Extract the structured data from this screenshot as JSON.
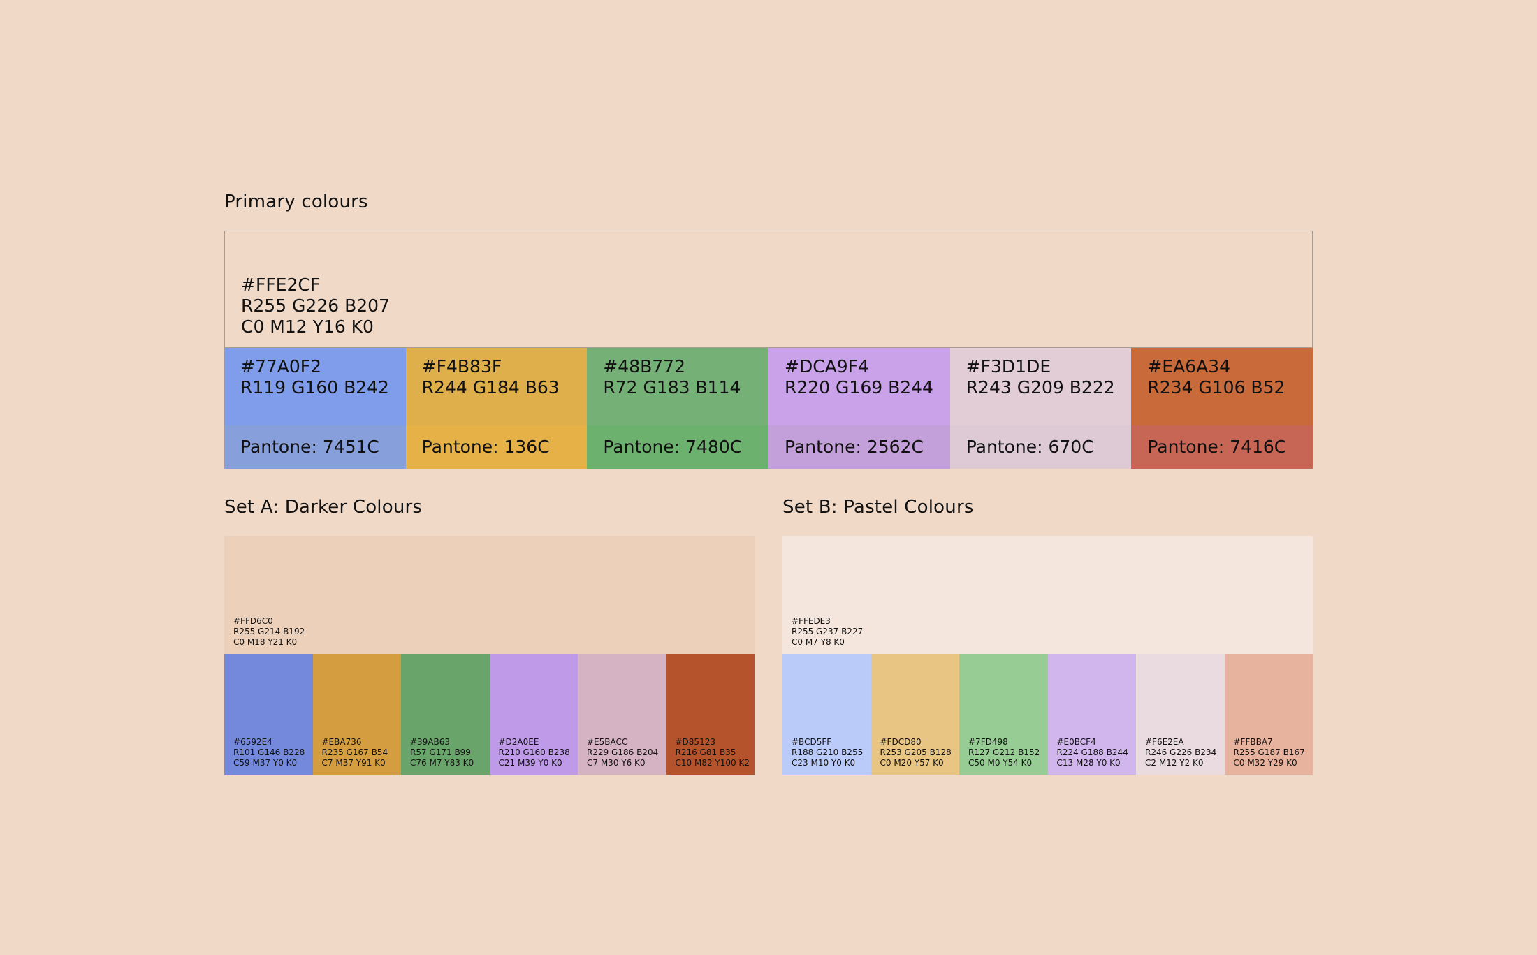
{
  "primary": {
    "title": "Primary colours",
    "main": {
      "hex": "#FFE2CF",
      "rgb": "R255 G226 B207",
      "cmyk": "C0 M12 Y16 K0",
      "color": "#F1D9C7"
    },
    "swatches": [
      {
        "hex": "#77A0F2",
        "rgb": "R119 G160 B242",
        "pantone": "Pantone: 7451C",
        "color": "#7F9DEB",
        "pantone_color": "#879FDB"
      },
      {
        "hex": "#F4B83F",
        "rgb": "R244 G184 B63",
        "pantone": "Pantone: 136C",
        "color": "#DFAF4C",
        "pantone_color": "#E6B146"
      },
      {
        "hex": "#48B772",
        "rgb": "R72 G183 B114",
        "pantone": "Pantone: 7480C",
        "color": "#75B077",
        "pantone_color": "#6CB26E"
      },
      {
        "hex": "#DCA9F4",
        "rgb": "R220 G169 B244",
        "pantone": "Pantone: 2562C",
        "color": "#C9A2EA",
        "pantone_color": "#C4A0DA"
      },
      {
        "hex": "#F3D1DE",
        "rgb": "R243 G209 B222",
        "pantone": "Pantone: 670C",
        "color": "#E2CCD6",
        "pantone_color": "#DECAD5"
      },
      {
        "hex": "#EA6A34",
        "rgb": "R234 G106 B52",
        "pantone": "Pantone: 7416C",
        "color": "#C96A3A",
        "pantone_color": "#C86655"
      }
    ]
  },
  "set_a": {
    "title": "Set A: Darker Colours",
    "main": {
      "hex": "#FFD6C0",
      "rgb": "R255 G214 B192",
      "cmyk": "C0 M18 Y21 K0",
      "color": "#EDD0BA"
    },
    "swatches": [
      {
        "hex": "#6592E4",
        "rgb": "R101 G146 B228",
        "cmyk": "C59 M37 Y0 K0",
        "color": "#7489DC"
      },
      {
        "hex": "#EBA736",
        "rgb": "R235 G167 B54",
        "cmyk": "C7 M37 Y91 K0",
        "color": "#D39D40"
      },
      {
        "hex": "#39AB63",
        "rgb": "R57 G171 B99",
        "cmyk": "C76 M7 Y83 K0",
        "color": "#69A46A"
      },
      {
        "hex": "#D2A0EE",
        "rgb": "R210 G160 B238",
        "cmyk": "C21 M39 Y0 K0",
        "color": "#BE9AE9"
      },
      {
        "hex": "#E5BACC",
        "rgb": "R229 G186 B204",
        "cmyk": "C7 M30 Y6 K0",
        "color": "#D5B3C2"
      },
      {
        "hex": "#D85123",
        "rgb": "R216 G81 B35",
        "cmyk": "C10 M82 Y100 K2",
        "color": "#B4532C"
      }
    ]
  },
  "set_b": {
    "title": "Set B: Pastel Colours",
    "main": {
      "hex": "#FFEDE3",
      "rgb": "R255 G237 B227",
      "cmyk": "C0 M7 Y8 K0",
      "color": "#F4E6DC"
    },
    "swatches": [
      {
        "hex": "#BCD5FF",
        "rgb": "R188 G210 B255",
        "cmyk": "C23 M10 Y0 K0",
        "color": "#BACAF9"
      },
      {
        "hex": "#FDCD80",
        "rgb": "R253 G205 B128",
        "cmyk": "C0 M20 Y57 K0",
        "color": "#E8C582"
      },
      {
        "hex": "#7FD498",
        "rgb": "R127 G212 B152",
        "cmyk": "C50 M0 Y54 K0",
        "color": "#97CD95"
      },
      {
        "hex": "#E0BCF4",
        "rgb": "R224 G188 B244",
        "cmyk": "C13 M28 Y0 K0",
        "color": "#D1B6EE"
      },
      {
        "hex": "#F6E2EA",
        "rgb": "R246 G226 B234",
        "cmyk": "C2 M12 Y2 K0",
        "color": "#EADBE1"
      },
      {
        "hex": "#FFBBA7",
        "rgb": "R255 G187 B167",
        "cmyk": "C0 M32 Y29 K0",
        "color": "#E8B39E"
      }
    ]
  }
}
